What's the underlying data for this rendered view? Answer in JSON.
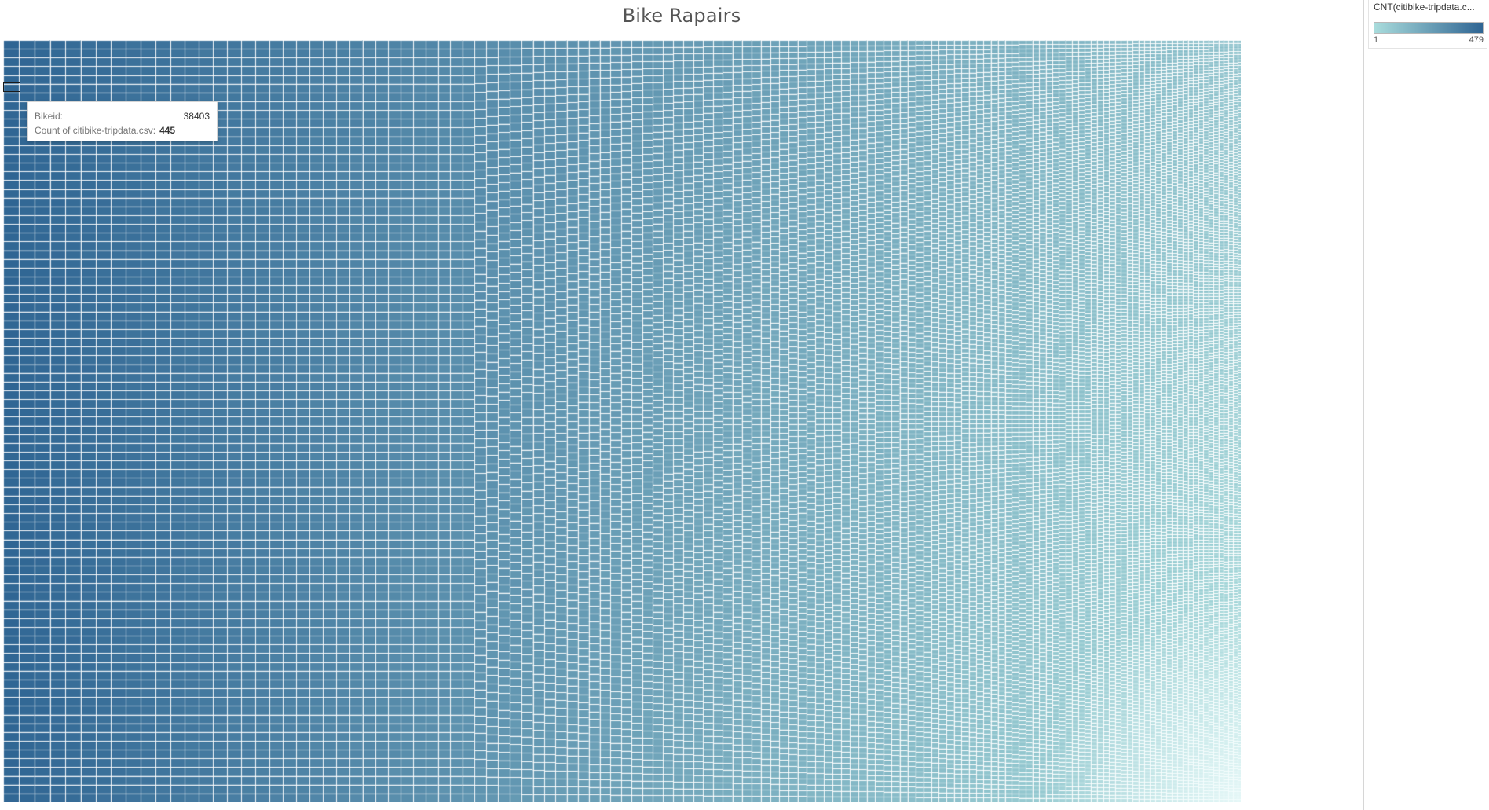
{
  "chart_data": {
    "type": "treemap",
    "title": "Bike Rapairs",
    "measure": "CNT(citibike-tripdata.c...",
    "color_range": {
      "min": 1,
      "max": 479
    },
    "color_min_label": "1",
    "color_max_label": "479",
    "colors": {
      "low": "#a9dcdc",
      "high": "#2f6593"
    },
    "tooltip": {
      "bikeid_label": "Bikeid:",
      "bikeid_value": "38403",
      "count_label": "Count of citibike-tripdata.csv:",
      "count_value": "445"
    }
  }
}
